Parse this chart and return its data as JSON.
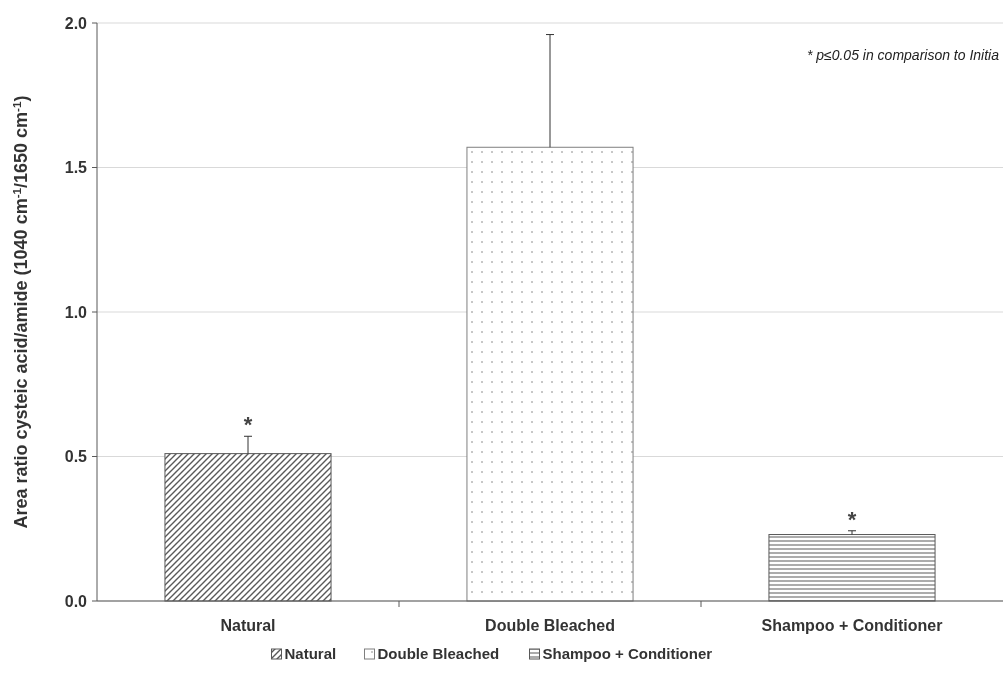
{
  "chart_data": {
    "type": "bar",
    "ylabel": "Area ratio cysteic acid/amide (1040 cm$^{-1}$/1650 cm$^{-1}$)",
    "categories": [
      "Natural",
      "Double Bleached",
      "Shampoo + Conditioner"
    ],
    "series": [
      {
        "name": "Natural",
        "color": "#595959",
        "values": [
          0.51,
          null,
          null
        ],
        "errors": [
          0.06,
          null,
          null
        ]
      },
      {
        "name": "Double Bleached",
        "color": "#7f7f7f",
        "values": [
          null,
          1.57,
          null
        ],
        "errors": [
          null,
          0.39,
          null
        ]
      },
      {
        "name": "Shampoo + Conditioner",
        "color": "#595959",
        "values": [
          null,
          null,
          0.23
        ],
        "errors": [
          null,
          null,
          0.013
        ]
      }
    ],
    "ylim": [
      0,
      2
    ],
    "yticks": [
      {
        "value": 0,
        "label": "0.0"
      },
      {
        "value": 0.5,
        "label": "0.5"
      },
      {
        "value": 1,
        "label": "1.0"
      },
      {
        "value": 1.5,
        "label": "1.5"
      },
      {
        "value": 2,
        "label": "2.0"
      }
    ],
    "grid": "y",
    "legend": "bottom",
    "annotations": [
      "* p≤0.05  in comparison to Initia",
      {
        "text": "*",
        "x": "Natural",
        "y": 0.57
      },
      {
        "text": "*",
        "x": "Shampoo + Conditioner",
        "y": 0.243
      }
    ]
  }
}
